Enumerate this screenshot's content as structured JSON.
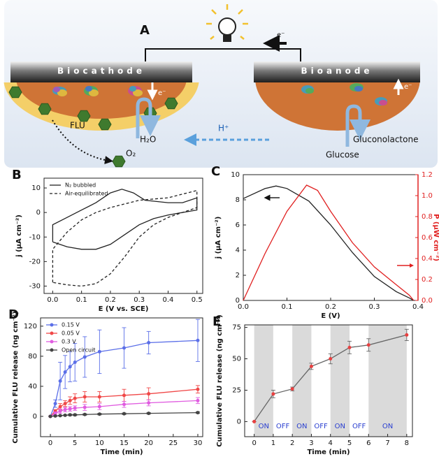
{
  "diagram": {
    "label": "A",
    "cathode": "Biocathode",
    "anode": "Bioanode",
    "electron_labels": [
      "e⁻",
      "e⁻",
      "e⁻"
    ],
    "flu": "FLU",
    "water": "H₂O",
    "oxygen": "O₂",
    "proton": "H⁺",
    "glucose": "Glucose",
    "gluconolactone": "Gluconolactone"
  },
  "chart_data": [
    {
      "type": "line",
      "label": "B",
      "xlabel": "E (V vs. SCE)",
      "ylabel": "j (μA cm⁻²)",
      "xlim": [
        -0.03,
        0.52
      ],
      "ylim": [
        -33,
        14
      ],
      "xticks": [
        {
          "value": 0,
          "label": "0.0"
        },
        0.1,
        0.2,
        0.3,
        0.4,
        0.5
      ],
      "yticks": [
        10,
        0,
        -10,
        -20,
        -30
      ],
      "legend": "upper left",
      "series": [
        {
          "name": "N₂ bubbled",
          "color": "#222222",
          "dash": false,
          "x": [
            0,
            0,
            0.05,
            0.1,
            0.15,
            0.2,
            0.24,
            0.28,
            0.32,
            0.4,
            0.45,
            0.5,
            0.5,
            0.45,
            0.4,
            0.35,
            0.3,
            0.25,
            0.2,
            0.15,
            0.1,
            0.05,
            0
          ],
          "values": [
            -12,
            -5,
            -2,
            1,
            4,
            8,
            9.5,
            8,
            5,
            4,
            4,
            6,
            1,
            0,
            -1,
            -2.5,
            -5,
            -9,
            -13,
            -15,
            -15,
            -14,
            -12
          ]
        },
        {
          "name": "Air-equilibrated",
          "color": "#222222",
          "dash": true,
          "x": [
            0,
            0,
            0.05,
            0.1,
            0.15,
            0.2,
            0.3,
            0.4,
            0.5,
            0.5,
            0.45,
            0.4,
            0.35,
            0.3,
            0.25,
            0.2,
            0.15,
            0.1,
            0.05,
            0
          ],
          "values": [
            -28.5,
            -15,
            -8,
            -3,
            0,
            2,
            5,
            6,
            9,
            2,
            0,
            -2,
            -5,
            -10,
            -18,
            -25,
            -29,
            -30,
            -29.5,
            -28.5
          ]
        }
      ]
    },
    {
      "type": "line",
      "label": "C",
      "xlabel": "E (V)",
      "ylabel": "j (μA cm⁻²)",
      "y2label": "P (μW cm⁻²)",
      "xlim": [
        0,
        0.4
      ],
      "ylim": [
        0,
        10
      ],
      "y2lim": [
        0,
        1.2
      ],
      "xticks": [
        {
          "value": 0,
          "label": "0.0"
        },
        0.1,
        0.2,
        0.3,
        0.4
      ],
      "yticks": [
        0,
        2,
        4,
        6,
        8,
        10
      ],
      "y2ticks": [
        {
          "value": 0,
          "label": "0.0"
        },
        0.2,
        0.4,
        0.6,
        0.8,
        {
          "value": 1,
          "label": "1.0"
        },
        1.2
      ],
      "series": [
        {
          "color": "#222222",
          "x": [
            0,
            0.05,
            0.075,
            0.1,
            0.15,
            0.2,
            0.25,
            0.3,
            0.35,
            0.38,
            0.39
          ],
          "values": [
            8.1,
            8.9,
            9.1,
            8.9,
            7.9,
            6,
            3.8,
            1.9,
            0.7,
            0.2,
            0
          ]
        },
        {
          "color": "#e02020",
          "axis": "y2",
          "x": [
            0,
            0.05,
            0.1,
            0.145,
            0.17,
            0.2,
            0.25,
            0.3,
            0.35,
            0.38,
            0.39
          ],
          "values": [
            0,
            0.45,
            0.85,
            1.1,
            1.05,
            0.85,
            0.55,
            0.32,
            0.15,
            0.05,
            0
          ]
        }
      ]
    },
    {
      "type": "line",
      "label": "D",
      "xlabel": "Time (min)",
      "ylabel": "Cumulative FLU release (ng cm⁻²)",
      "xlim": [
        -2,
        31
      ],
      "ylim": [
        -27,
        131
      ],
      "xticks": [
        0,
        5,
        10,
        15,
        20,
        25,
        30
      ],
      "yticks": [
        0,
        40,
        80,
        120
      ],
      "legend": "upper left",
      "x": [
        0,
        1,
        2,
        3,
        4,
        5,
        7,
        10,
        15,
        20,
        30
      ],
      "series": [
        {
          "name": "0.15 V",
          "color": "#5b6fe8",
          "values": [
            0,
            17,
            47,
            59,
            66,
            72,
            79,
            86,
            91,
            98,
            101
          ],
          "errors": [
            0,
            5,
            25,
            22,
            20,
            25,
            27,
            29,
            27,
            15,
            28
          ]
        },
        {
          "name": "0.05 V",
          "color": "#f04848",
          "values": [
            0,
            7,
            13,
            17,
            21,
            24,
            26,
            26,
            28,
            30,
            36
          ],
          "errors": [
            0,
            2,
            4,
            4,
            5,
            6,
            7,
            7,
            8,
            8,
            5
          ]
        },
        {
          "name": "0.3 V",
          "color": "#e05ce0",
          "values": [
            0,
            4,
            7,
            9,
            10,
            11,
            12,
            13,
            16,
            18,
            21
          ],
          "errors": [
            0,
            2,
            3,
            3,
            3,
            3,
            4,
            4,
            4,
            4,
            4
          ]
        },
        {
          "name": "Open circuit",
          "color": "#444444",
          "values": [
            0,
            0.5,
            1,
            1.5,
            2,
            2,
            2.5,
            3,
            3.5,
            4,
            5
          ],
          "errors": [
            0,
            0.5,
            0.5,
            0.5,
            1,
            1,
            1,
            1,
            1,
            1,
            1
          ]
        }
      ]
    },
    {
      "type": "line",
      "label": "E",
      "xlabel": "Time (min)",
      "ylabel": "Cumulative FLU release (ng cm⁻²)",
      "xlim": [
        -0.5,
        8.3
      ],
      "ylim": [
        -12,
        77
      ],
      "xticks": [
        0,
        1,
        2,
        3,
        4,
        5,
        6,
        7,
        8
      ],
      "yticks": [
        0,
        25,
        50,
        75
      ],
      "phases": [
        {
          "label": "ON",
          "start": 0,
          "end": 1,
          "color": "#dadada"
        },
        {
          "label": "OFF",
          "start": 1,
          "end": 2,
          "color": "#ffffff"
        },
        {
          "label": "ON",
          "start": 2,
          "end": 3,
          "color": "#dadada"
        },
        {
          "label": "OFF",
          "start": 3,
          "end": 4,
          "color": "#ffffff"
        },
        {
          "label": "ON",
          "start": 4,
          "end": 5,
          "color": "#dadada"
        },
        {
          "label": "OFF",
          "start": 5,
          "end": 6,
          "color": "#ffffff"
        },
        {
          "label": "ON",
          "start": 6,
          "end": 8,
          "color": "#dadada"
        }
      ],
      "x": [
        0,
        1,
        2,
        3,
        4,
        5,
        6,
        8
      ],
      "series": [
        {
          "color": "#666666",
          "marker_color": "#e84040",
          "values": [
            0,
            22,
            26,
            44,
            50,
            59,
            61,
            69
          ],
          "errors": [
            0,
            3,
            1.5,
            2.5,
            4,
            5,
            5,
            4.5
          ]
        }
      ]
    }
  ]
}
